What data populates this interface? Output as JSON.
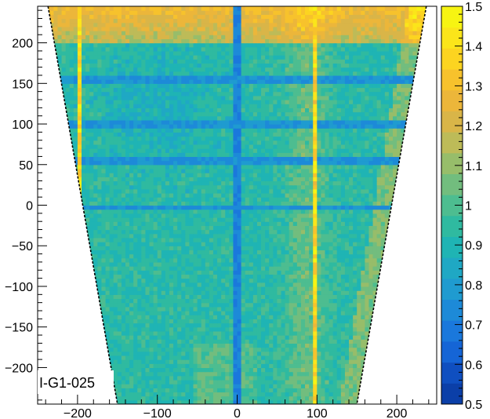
{
  "chart_data": {
    "type": "heatmap",
    "title": "",
    "xlabel": "",
    "ylabel": "",
    "annotation": "I-G1-025",
    "x_range": [
      -250,
      250
    ],
    "y_range": [
      -245,
      245
    ],
    "x_ticks": [
      -200,
      -100,
      0,
      100,
      200
    ],
    "x_tick_labels": [
      "−200",
      "−100",
      "0",
      "100",
      "200"
    ],
    "y_ticks": [
      -200,
      -150,
      -100,
      -50,
      0,
      50,
      100,
      150,
      200
    ],
    "y_tick_labels": [
      "−200",
      "−150",
      "−100",
      "−50",
      "0",
      "50",
      "100",
      "150",
      "200"
    ],
    "z_range": [
      0.5,
      1.5
    ],
    "z_ticks": [
      0.5,
      0.6,
      0.7,
      0.8,
      0.9,
      1,
      1.1,
      1.2,
      1.3,
      1.4,
      1.5
    ],
    "z_tick_labels": [
      "0.5",
      "0.6",
      "0.7",
      "0.8",
      "0.9",
      "1",
      "1.1",
      "1.2",
      "1.3",
      "1.4",
      "1.5"
    ],
    "palette": [
      "#0b3fa8",
      "#0f4fc0",
      "#1565d6",
      "#1a78dc",
      "#1d8ad8",
      "#1f9bd0",
      "#1fa8c4",
      "#1fb4b4",
      "#2fbaa0",
      "#4dbd90",
      "#72bd7e",
      "#97bd6a",
      "#bdbb58",
      "#d9b548",
      "#ecb63a",
      "#f7c22c",
      "#fcd420",
      "#fbe51a",
      "#f7f412"
    ],
    "trapezoid_outline": {
      "top_left": [
        -237,
        245
      ],
      "bottom_left": [
        -150,
        -245
      ],
      "top_right": [
        237,
        245
      ],
      "bottom_right": [
        150,
        -245
      ]
    },
    "features": {
      "dead_column_x": 0,
      "low_rows_y": [
        155,
        100,
        55,
        -1
      ],
      "hot_columns_x": [
        -199,
        98
      ],
      "hot_region_top": "y > 200"
    }
  }
}
